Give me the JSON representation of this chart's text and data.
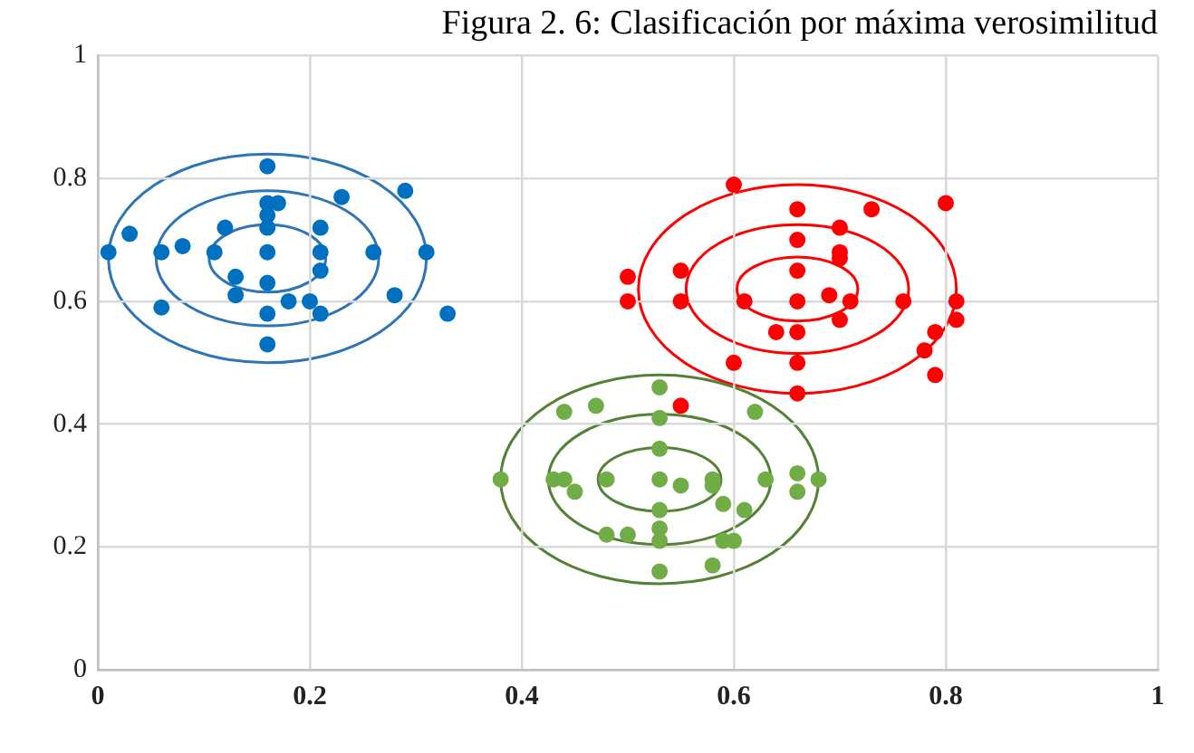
{
  "chart_data": {
    "type": "scatter",
    "title": "Figura 2. 6: Clasificación por máxima verosimilitud",
    "xlim": [
      0,
      1
    ],
    "ylim": [
      0,
      1
    ],
    "xticks": [
      0,
      0.2,
      0.4,
      0.6,
      0.8,
      1
    ],
    "yticks": [
      0,
      0.2,
      0.4,
      0.6,
      0.8,
      1
    ],
    "grid": true,
    "legend": false,
    "marker": "circle",
    "series": [
      {
        "color": "#0070c0",
        "x": [
          0.16,
          0.03,
          0.01,
          0.06,
          0.08,
          0.11,
          0.12,
          0.16,
          0.17,
          0.16,
          0.16,
          0.16,
          0.21,
          0.21,
          0.21,
          0.23,
          0.29,
          0.26,
          0.31,
          0.13,
          0.13,
          0.16,
          0.18,
          0.2,
          0.21,
          0.16,
          0.06,
          0.28,
          0.33,
          0.16
        ],
        "values": [
          0.82,
          0.71,
          0.68,
          0.68,
          0.69,
          0.68,
          0.72,
          0.76,
          0.76,
          0.74,
          0.72,
          0.68,
          0.72,
          0.68,
          0.65,
          0.77,
          0.78,
          0.68,
          0.68,
          0.64,
          0.61,
          0.63,
          0.6,
          0.6,
          0.58,
          0.58,
          0.59,
          0.61,
          0.58,
          0.53
        ]
      },
      {
        "color": "#ff0000",
        "x": [
          0.6,
          0.66,
          0.73,
          0.8,
          0.66,
          0.7,
          0.7,
          0.7,
          0.5,
          0.55,
          0.66,
          0.5,
          0.55,
          0.61,
          0.66,
          0.69,
          0.71,
          0.76,
          0.81,
          0.81,
          0.7,
          0.64,
          0.66,
          0.79,
          0.78,
          0.6,
          0.66,
          0.79,
          0.66,
          0.55
        ],
        "values": [
          0.79,
          0.75,
          0.75,
          0.76,
          0.7,
          0.72,
          0.68,
          0.67,
          0.64,
          0.65,
          0.65,
          0.6,
          0.6,
          0.6,
          0.6,
          0.61,
          0.6,
          0.6,
          0.6,
          0.57,
          0.57,
          0.55,
          0.55,
          0.55,
          0.52,
          0.5,
          0.5,
          0.48,
          0.45,
          0.43
        ]
      },
      {
        "color": "#70ad47",
        "x": [
          0.53,
          0.44,
          0.47,
          0.62,
          0.53,
          0.53,
          0.38,
          0.43,
          0.44,
          0.45,
          0.48,
          0.53,
          0.55,
          0.58,
          0.58,
          0.63,
          0.66,
          0.68,
          0.66,
          0.59,
          0.53,
          0.61,
          0.53,
          0.53,
          0.48,
          0.5,
          0.59,
          0.6,
          0.53,
          0.58
        ],
        "values": [
          0.46,
          0.42,
          0.43,
          0.42,
          0.41,
          0.36,
          0.31,
          0.31,
          0.31,
          0.29,
          0.31,
          0.31,
          0.3,
          0.31,
          0.3,
          0.31,
          0.32,
          0.31,
          0.29,
          0.27,
          0.26,
          0.26,
          0.23,
          0.21,
          0.22,
          0.22,
          0.21,
          0.21,
          0.16,
          0.17
        ]
      }
    ]
  }
}
